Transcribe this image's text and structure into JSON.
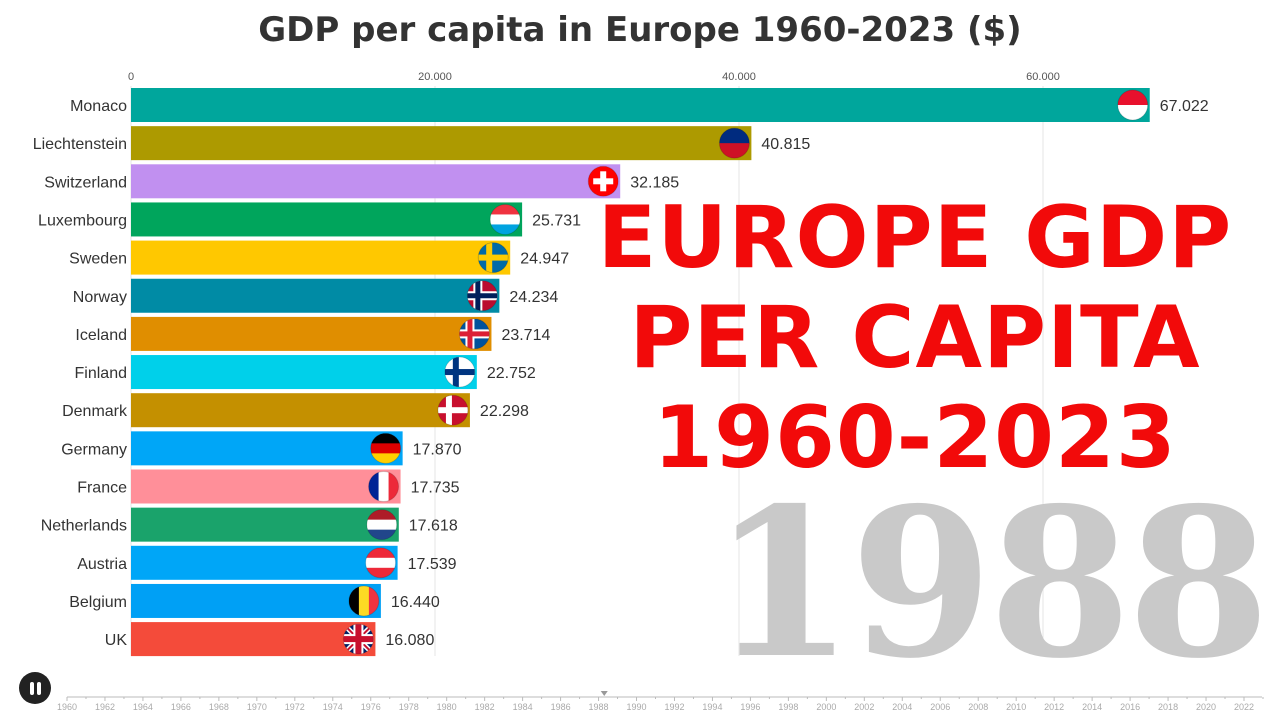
{
  "chart_data": {
    "type": "bar",
    "orientation": "horizontal",
    "title": "GDP per capita in Europe 1960-2023 ($)",
    "current_year": "1988",
    "xlim": [
      0,
      70000
    ],
    "x_ticks": [
      0,
      20000,
      40000,
      60000
    ],
    "x_tick_labels": [
      "0",
      "20.000",
      "40.000",
      "60.000"
    ],
    "grid": true,
    "categories": [
      "Monaco",
      "Liechtenstein",
      "Switzerland",
      "Luxembourg",
      "Sweden",
      "Norway",
      "Iceland",
      "Finland",
      "Denmark",
      "Germany",
      "France",
      "Netherlands",
      "Austria",
      "Belgium",
      "UK"
    ],
    "values": [
      67022,
      40815,
      32185,
      25731,
      24947,
      24234,
      23714,
      22752,
      22298,
      17870,
      17735,
      17618,
      17539,
      16440,
      16080
    ],
    "value_labels": [
      "67.022",
      "40.815",
      "32.185",
      "25.731",
      "24.947",
      "24.234",
      "23.714",
      "22.752",
      "22.298",
      "17.870",
      "17.735",
      "17.618",
      "17.539",
      "16.440",
      "16.080"
    ],
    "colors": [
      "#00a69c",
      "#ad9a00",
      "#c190f0",
      "#00a55c",
      "#ffc800",
      "#008ba5",
      "#e08e00",
      "#00d0ea",
      "#c49000",
      "#00a6f7",
      "#ff8f99",
      "#1aa36b",
      "#00a6f7",
      "#00a0f5",
      "#f44b3a"
    ],
    "flags": [
      {
        "icon": "monaco-flag-icon",
        "type": "h",
        "colors": [
          "#e8112d",
          "#ffffff"
        ]
      },
      {
        "icon": "liechtenstein-flag-icon",
        "type": "h",
        "colors": [
          "#002b7f",
          "#ce1126"
        ]
      },
      {
        "icon": "switzerland-flag-icon",
        "type": "cross",
        "colors": [
          "#ff0000",
          "#ffffff"
        ]
      },
      {
        "icon": "luxembourg-flag-icon",
        "type": "h",
        "colors": [
          "#ef3340",
          "#ffffff",
          "#00a3e0"
        ]
      },
      {
        "icon": "sweden-flag-icon",
        "type": "nordic",
        "colors": [
          "#006aa7",
          "#fecc00"
        ]
      },
      {
        "icon": "norway-flag-icon",
        "type": "nordic2",
        "colors": [
          "#ba0c2f",
          "#ffffff",
          "#00205b"
        ]
      },
      {
        "icon": "iceland-flag-icon",
        "type": "nordic2",
        "colors": [
          "#02529c",
          "#ffffff",
          "#dc1e35"
        ]
      },
      {
        "icon": "finland-flag-icon",
        "type": "nordic",
        "colors": [
          "#ffffff",
          "#003580"
        ]
      },
      {
        "icon": "denmark-flag-icon",
        "type": "nordic",
        "colors": [
          "#c8102e",
          "#ffffff"
        ]
      },
      {
        "icon": "germany-flag-icon",
        "type": "h",
        "colors": [
          "#000000",
          "#dd0000",
          "#ffce00"
        ]
      },
      {
        "icon": "france-flag-icon",
        "type": "v",
        "colors": [
          "#002395",
          "#ffffff",
          "#ed2939"
        ]
      },
      {
        "icon": "netherlands-flag-icon",
        "type": "h",
        "colors": [
          "#ae1c28",
          "#ffffff",
          "#21468b"
        ]
      },
      {
        "icon": "austria-flag-icon",
        "type": "h",
        "colors": [
          "#ed2939",
          "#ffffff",
          "#ed2939"
        ]
      },
      {
        "icon": "belgium-flag-icon",
        "type": "v",
        "colors": [
          "#000000",
          "#fdda24",
          "#ef3340"
        ]
      },
      {
        "icon": "uk-flag-icon",
        "type": "uk",
        "colors": [
          "#012169",
          "#ffffff",
          "#c8102e"
        ]
      }
    ]
  },
  "overlay": {
    "lines": [
      "EUROPE GDP",
      "PER CAPITA",
      "1960-2023"
    ]
  },
  "timeline": {
    "labels": [
      "1960",
      "1962",
      "1964",
      "1966",
      "1968",
      "1970",
      "1972",
      "1974",
      "1976",
      "1978",
      "1980",
      "1982",
      "1984",
      "1986",
      "1988",
      "1990",
      "1992",
      "1994",
      "1996",
      "1998",
      "2000",
      "2002",
      "2004",
      "2006",
      "2008",
      "2010",
      "2012",
      "2014",
      "2016",
      "2018",
      "2020",
      "2022"
    ],
    "current": 1988.3,
    "playing": true
  }
}
